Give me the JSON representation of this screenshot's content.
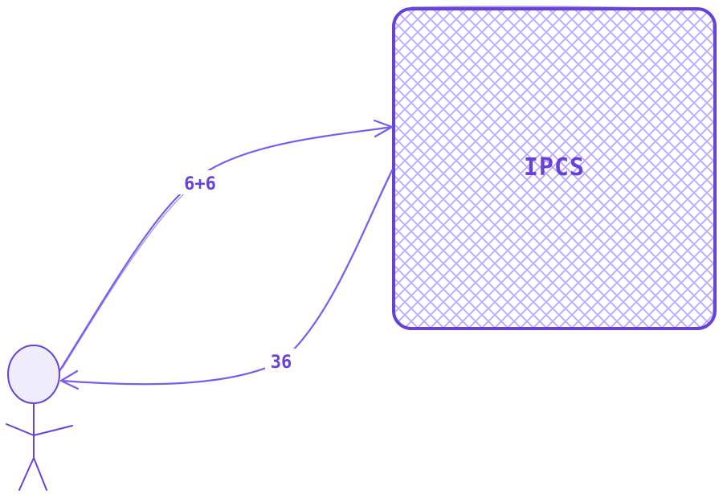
{
  "nodes": {
    "system": {
      "label": "IPCS"
    },
    "actor": {
      "label": ""
    }
  },
  "edges": {
    "request": {
      "label": "6+6"
    },
    "response": {
      "label": "36"
    }
  },
  "colors": {
    "stroke": "#6741d9",
    "arrow": "#7b5cf0",
    "hatch": "#b9a8f7",
    "actor_fill": "#efedfb"
  }
}
